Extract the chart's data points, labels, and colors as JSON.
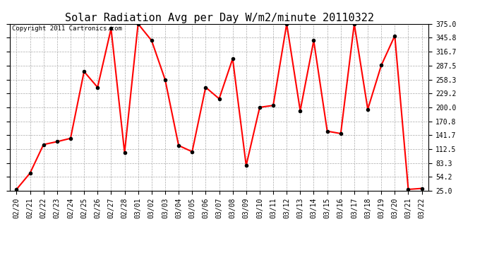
{
  "title": "Solar Radiation Avg per Day W/m2/minute 20110322",
  "copyright": "Copyright 2011 Cartronics.com",
  "x_labels": [
    "02/20",
    "02/21",
    "02/22",
    "02/23",
    "02/24",
    "02/25",
    "02/26",
    "02/27",
    "02/28",
    "03/01",
    "03/02",
    "03/03",
    "03/04",
    "03/05",
    "03/06",
    "03/07",
    "03/08",
    "03/09",
    "03/10",
    "03/11",
    "03/12",
    "03/13",
    "03/14",
    "03/15",
    "03/16",
    "03/17",
    "03/18",
    "03/19",
    "03/20",
    "03/21",
    "03/22"
  ],
  "y_values": [
    28.0,
    62.0,
    122.0,
    128.0,
    135.0,
    275.0,
    242.0,
    365.0,
    105.0,
    375.0,
    340.0,
    258.0,
    120.0,
    107.0,
    242.0,
    218.0,
    302.0,
    78.0,
    200.0,
    204.0,
    375.0,
    193.0,
    340.0,
    150.0,
    145.0,
    375.0,
    196.0,
    288.0,
    350.0,
    28.0,
    30.0
  ],
  "line_color": "#ff0000",
  "marker_color": "#000000",
  "background_color": "#ffffff",
  "grid_color": "#aaaaaa",
  "y_ticks": [
    25.0,
    54.2,
    83.3,
    112.5,
    141.7,
    170.8,
    200.0,
    229.2,
    258.3,
    287.5,
    316.7,
    345.8,
    375.0
  ],
  "ylim": [
    25.0,
    375.0
  ],
  "title_fontsize": 11,
  "copyright_fontsize": 6.5,
  "tick_fontsize": 7
}
